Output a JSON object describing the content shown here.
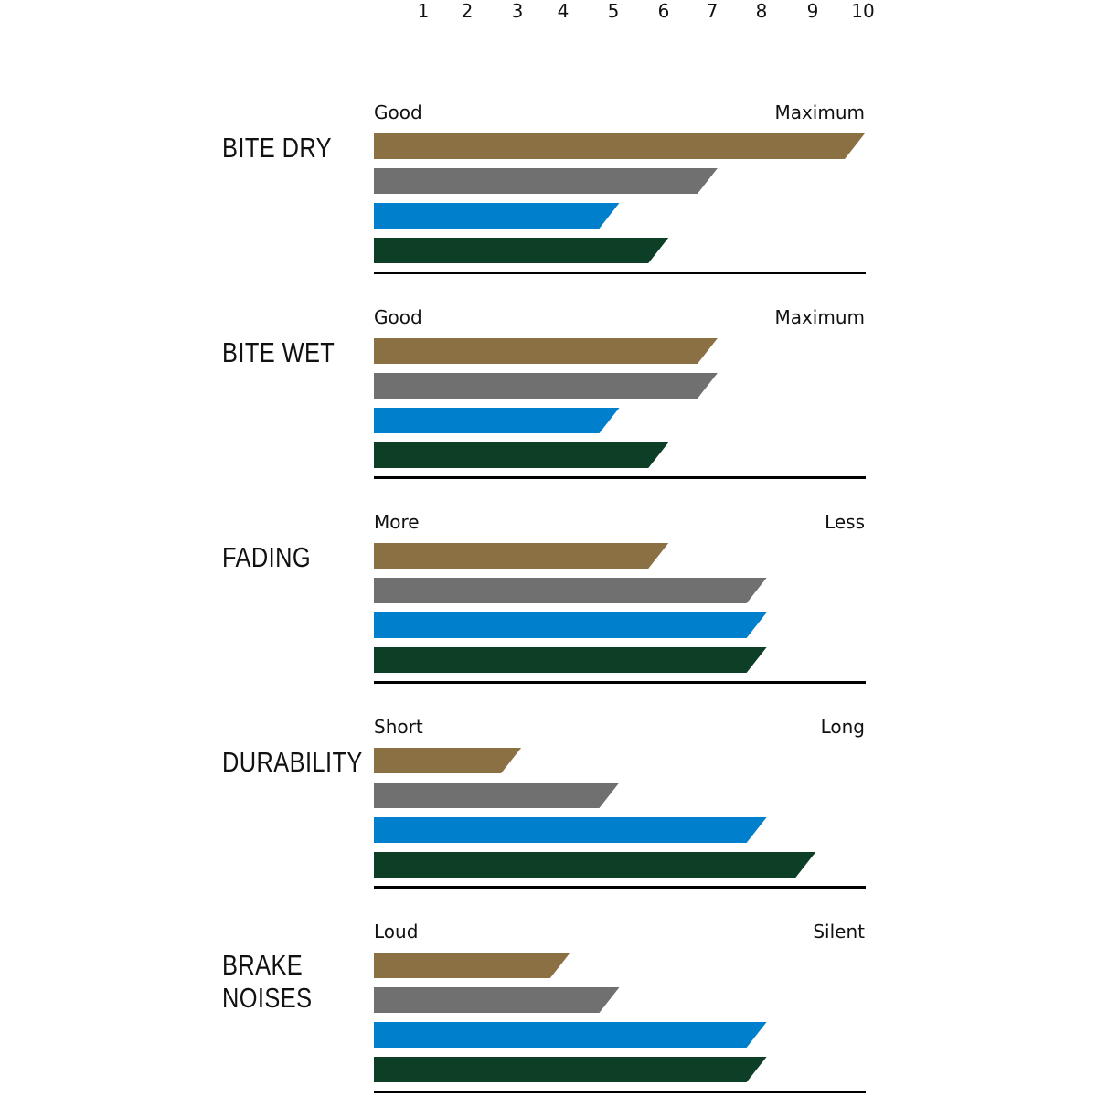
{
  "chart_data": {
    "type": "bar",
    "orientation": "horizontal",
    "x_ticks": [
      "1",
      "2",
      "3",
      "4",
      "5",
      "6",
      "7",
      "8",
      "9",
      "10"
    ],
    "xlim": [
      0,
      10
    ],
    "grid": false,
    "colors": [
      "#8B7043",
      "#707070",
      "#0080CC",
      "#0D3F27"
    ],
    "groups": [
      {
        "title": [
          "BITE DRY"
        ],
        "left_label": "Good",
        "right_label": "Maximum",
        "values": [
          10,
          7,
          5,
          6
        ]
      },
      {
        "title": [
          "BITE WET"
        ],
        "left_label": "Good",
        "right_label": "Maximum",
        "values": [
          7,
          7,
          5,
          6
        ]
      },
      {
        "title": [
          "FADING"
        ],
        "left_label": "More",
        "right_label": "Less",
        "values": [
          6,
          8,
          8,
          8
        ]
      },
      {
        "title": [
          "DURABILITY"
        ],
        "left_label": "Short",
        "right_label": "Long",
        "values": [
          3,
          5,
          8,
          9
        ]
      },
      {
        "title": [
          "BRAKE",
          "NOISES"
        ],
        "left_label": "Loud",
        "right_label": "Silent",
        "values": [
          4,
          5,
          8,
          8
        ]
      }
    ]
  }
}
